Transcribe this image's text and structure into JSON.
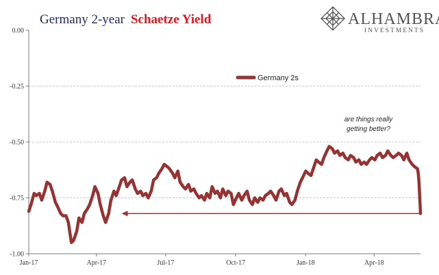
{
  "title": {
    "part1": "Germany 2-year",
    "part2": "Schaetze Yield"
  },
  "logo": {
    "name": "ALHAMBRA",
    "sub": "INVESTMENTS",
    "icon": "diamond-lattice-icon"
  },
  "annotation": {
    "line1": "are things really",
    "line2": "getting better?"
  },
  "colors": {
    "series": "#963232",
    "title_primary": "#1f2a6e",
    "title_accent": "#e8141b",
    "grid": "#b5b5b5"
  },
  "chart_data": {
    "type": "line",
    "title": "Germany 2-year Schaetze Yield",
    "xlabel": "",
    "ylabel": "",
    "ylim": [
      -1.0,
      0.0
    ],
    "yticks": [
      "0.00",
      "-0.25",
      "-0.50",
      "-0.75",
      "-1.00"
    ],
    "ytick_values": [
      0.0,
      -0.25,
      -0.5,
      -0.75,
      -1.0
    ],
    "xticks": [
      "Jan-17",
      "Apr-17",
      "Jul-17",
      "Oct-17",
      "Jan-18",
      "Apr-18"
    ],
    "xtick_dates": [
      "2017-01-02",
      "2017-04-01",
      "2017-07-01",
      "2017-10-01",
      "2018-01-01",
      "2018-04-01"
    ],
    "xlim": [
      "2017-01-02",
      "2018-06-01"
    ],
    "grid": "horizontal dashed",
    "legend_position": "upper-center",
    "series": [
      {
        "name": "Germany 2s",
        "x": [
          "2017-01-02",
          "2017-01-05",
          "2017-01-09",
          "2017-01-12",
          "2017-01-16",
          "2017-01-19",
          "2017-01-23",
          "2017-01-26",
          "2017-01-30",
          "2017-02-02",
          "2017-02-06",
          "2017-02-09",
          "2017-02-13",
          "2017-02-16",
          "2017-02-20",
          "2017-02-23",
          "2017-02-27",
          "2017-03-02",
          "2017-03-06",
          "2017-03-09",
          "2017-03-13",
          "2017-03-16",
          "2017-03-20",
          "2017-03-23",
          "2017-03-27",
          "2017-03-30",
          "2017-04-03",
          "2017-04-06",
          "2017-04-10",
          "2017-04-13",
          "2017-04-17",
          "2017-04-20",
          "2017-04-24",
          "2017-04-27",
          "2017-05-01",
          "2017-05-04",
          "2017-05-08",
          "2017-05-11",
          "2017-05-15",
          "2017-05-18",
          "2017-05-22",
          "2017-05-25",
          "2017-05-29",
          "2017-06-01",
          "2017-06-05",
          "2017-06-08",
          "2017-06-12",
          "2017-06-15",
          "2017-06-19",
          "2017-06-22",
          "2017-06-26",
          "2017-06-29",
          "2017-07-03",
          "2017-07-06",
          "2017-07-10",
          "2017-07-13",
          "2017-07-17",
          "2017-07-20",
          "2017-07-24",
          "2017-07-27",
          "2017-07-31",
          "2017-08-03",
          "2017-08-07",
          "2017-08-10",
          "2017-08-14",
          "2017-08-17",
          "2017-08-21",
          "2017-08-24",
          "2017-08-28",
          "2017-08-31",
          "2017-09-04",
          "2017-09-07",
          "2017-09-11",
          "2017-09-14",
          "2017-09-18",
          "2017-09-21",
          "2017-09-25",
          "2017-09-28",
          "2017-10-02",
          "2017-10-05",
          "2017-10-09",
          "2017-10-12",
          "2017-10-16",
          "2017-10-19",
          "2017-10-23",
          "2017-10-26",
          "2017-10-30",
          "2017-11-02",
          "2017-11-06",
          "2017-11-09",
          "2017-11-13",
          "2017-11-16",
          "2017-11-20",
          "2017-11-23",
          "2017-11-27",
          "2017-11-30",
          "2017-12-04",
          "2017-12-07",
          "2017-12-11",
          "2017-12-14",
          "2017-12-18",
          "2017-12-21",
          "2017-12-25",
          "2017-12-28",
          "2018-01-01",
          "2018-01-04",
          "2018-01-08",
          "2018-01-11",
          "2018-01-15",
          "2018-01-18",
          "2018-01-22",
          "2018-01-25",
          "2018-01-29",
          "2018-02-01",
          "2018-02-05",
          "2018-02-08",
          "2018-02-12",
          "2018-02-15",
          "2018-02-19",
          "2018-02-22",
          "2018-02-26",
          "2018-03-01",
          "2018-03-05",
          "2018-03-08",
          "2018-03-12",
          "2018-03-15",
          "2018-03-19",
          "2018-03-22",
          "2018-03-26",
          "2018-03-29",
          "2018-04-02",
          "2018-04-05",
          "2018-04-09",
          "2018-04-12",
          "2018-04-16",
          "2018-04-19",
          "2018-04-23",
          "2018-04-26",
          "2018-04-30",
          "2018-05-03",
          "2018-05-07",
          "2018-05-10",
          "2018-05-14",
          "2018-05-17",
          "2018-05-21",
          "2018-05-24",
          "2018-05-28",
          "2018-05-29",
          "2018-05-30",
          "2018-05-31",
          "2018-06-01"
        ],
        "values": [
          -0.81,
          -0.78,
          -0.73,
          -0.74,
          -0.73,
          -0.76,
          -0.72,
          -0.68,
          -0.69,
          -0.72,
          -0.77,
          -0.79,
          -0.82,
          -0.83,
          -0.83,
          -0.86,
          -0.95,
          -0.94,
          -0.9,
          -0.84,
          -0.86,
          -0.82,
          -0.8,
          -0.78,
          -0.74,
          -0.7,
          -0.73,
          -0.78,
          -0.83,
          -0.86,
          -0.82,
          -0.76,
          -0.72,
          -0.74,
          -0.7,
          -0.67,
          -0.66,
          -0.7,
          -0.68,
          -0.67,
          -0.71,
          -0.73,
          -0.72,
          -0.74,
          -0.73,
          -0.75,
          -0.72,
          -0.67,
          -0.66,
          -0.64,
          -0.62,
          -0.6,
          -0.61,
          -0.62,
          -0.64,
          -0.66,
          -0.63,
          -0.68,
          -0.7,
          -0.71,
          -0.69,
          -0.72,
          -0.71,
          -0.73,
          -0.75,
          -0.74,
          -0.76,
          -0.73,
          -0.75,
          -0.7,
          -0.73,
          -0.72,
          -0.75,
          -0.71,
          -0.74,
          -0.72,
          -0.73,
          -0.78,
          -0.75,
          -0.73,
          -0.76,
          -0.74,
          -0.72,
          -0.76,
          -0.78,
          -0.75,
          -0.77,
          -0.75,
          -0.76,
          -0.74,
          -0.73,
          -0.72,
          -0.74,
          -0.76,
          -0.72,
          -0.71,
          -0.74,
          -0.73,
          -0.77,
          -0.78,
          -0.76,
          -0.72,
          -0.68,
          -0.66,
          -0.63,
          -0.64,
          -0.65,
          -0.62,
          -0.58,
          -0.59,
          -0.6,
          -0.57,
          -0.54,
          -0.52,
          -0.53,
          -0.55,
          -0.54,
          -0.56,
          -0.55,
          -0.57,
          -0.58,
          -0.56,
          -0.57,
          -0.59,
          -0.58,
          -0.6,
          -0.59,
          -0.6,
          -0.58,
          -0.57,
          -0.58,
          -0.56,
          -0.55,
          -0.57,
          -0.56,
          -0.54,
          -0.56,
          -0.57,
          -0.56,
          -0.55,
          -0.56,
          -0.58,
          -0.55,
          -0.58,
          -0.6,
          -0.61,
          -0.62,
          -0.64,
          -0.68,
          -0.75,
          -0.82
        ]
      }
    ],
    "reference_arrow": {
      "from_date": "2018-05-31",
      "to_date": "2017-05-04",
      "value": -0.82
    }
  }
}
